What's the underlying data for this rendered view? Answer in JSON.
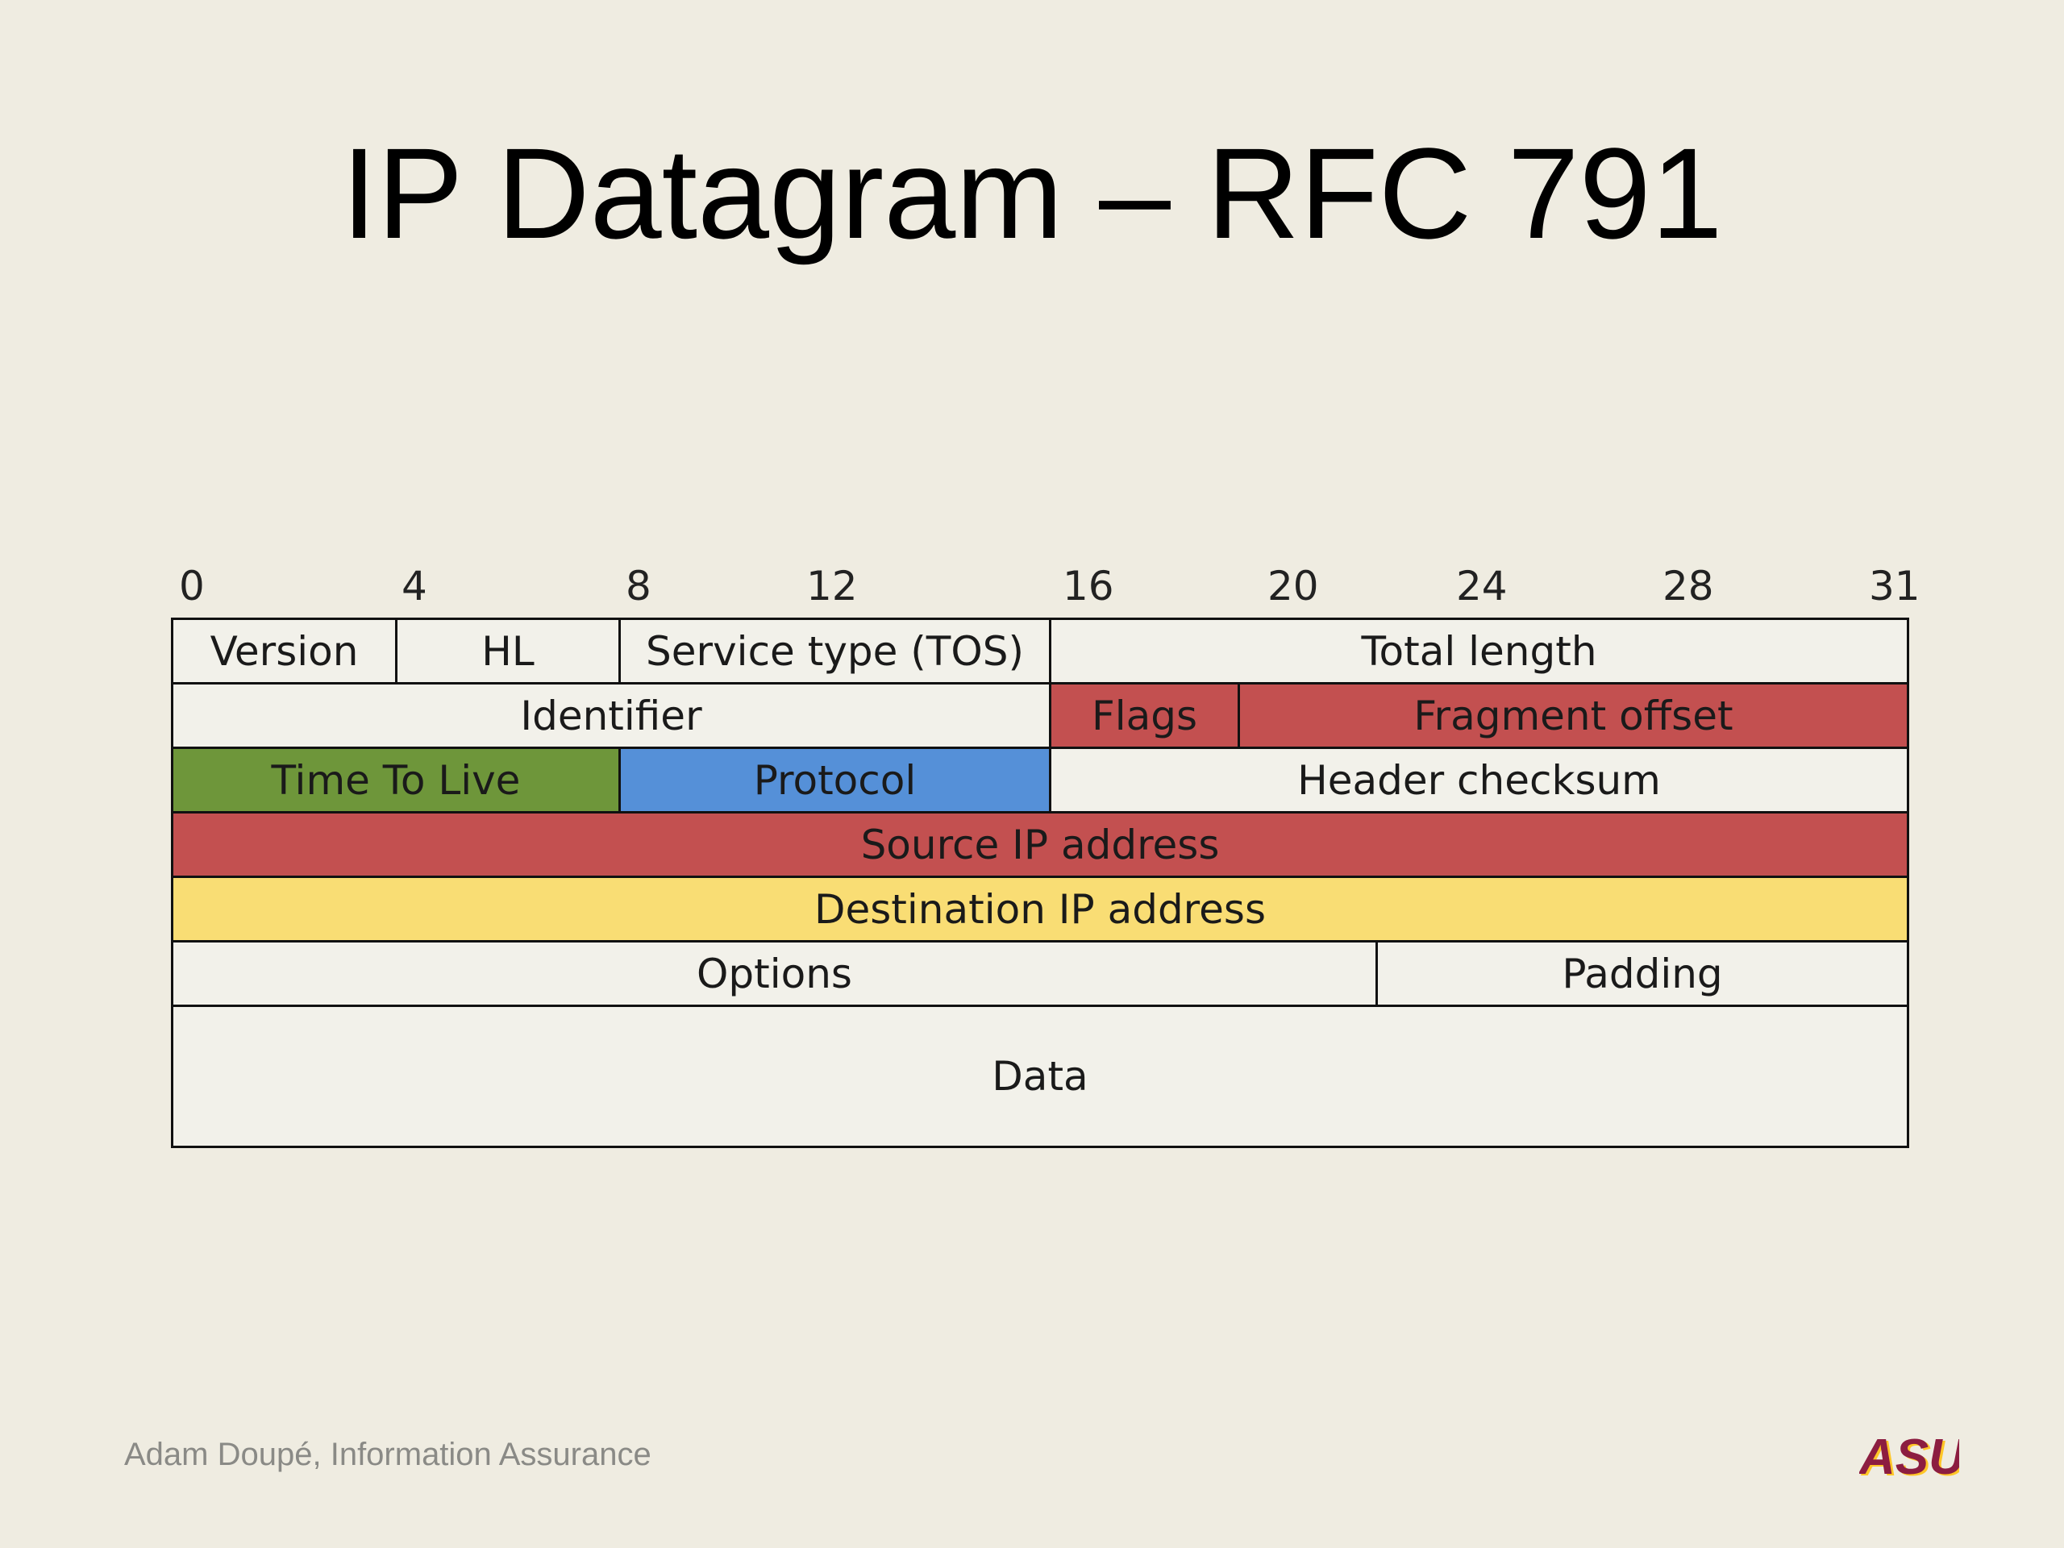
{
  "title": "IP Datagram – RFC 791",
  "bit_labels": [
    "0",
    "4",
    "8",
    "12",
    "16",
    "20",
    "24",
    "28",
    "31"
  ],
  "fields": {
    "version": "Version",
    "hl": "HL",
    "tos": "Service type (TOS)",
    "total_length": "Total length",
    "identifier": "Identifier",
    "flags": "Flags",
    "fragment_offset": "Fragment offset",
    "ttl": "Time To Live",
    "protocol": "Protocol",
    "header_checksum": "Header checksum",
    "source_ip": "Source IP address",
    "destination_ip": "Destination IP address",
    "options": "Options",
    "padding": "Padding",
    "data": "Data"
  },
  "colors": {
    "background": "#efece1",
    "cell_default": "#f2f1ea",
    "red": "#c35050",
    "green": "#6e963a",
    "blue": "#5590d8",
    "yellow": "#f9dd74"
  },
  "footer": "Adam Doupé, Information Assurance",
  "logo": {
    "icon": "asu-logo-icon",
    "text": "ASU",
    "colors": [
      "#8c1d40",
      "#ffc627"
    ]
  }
}
